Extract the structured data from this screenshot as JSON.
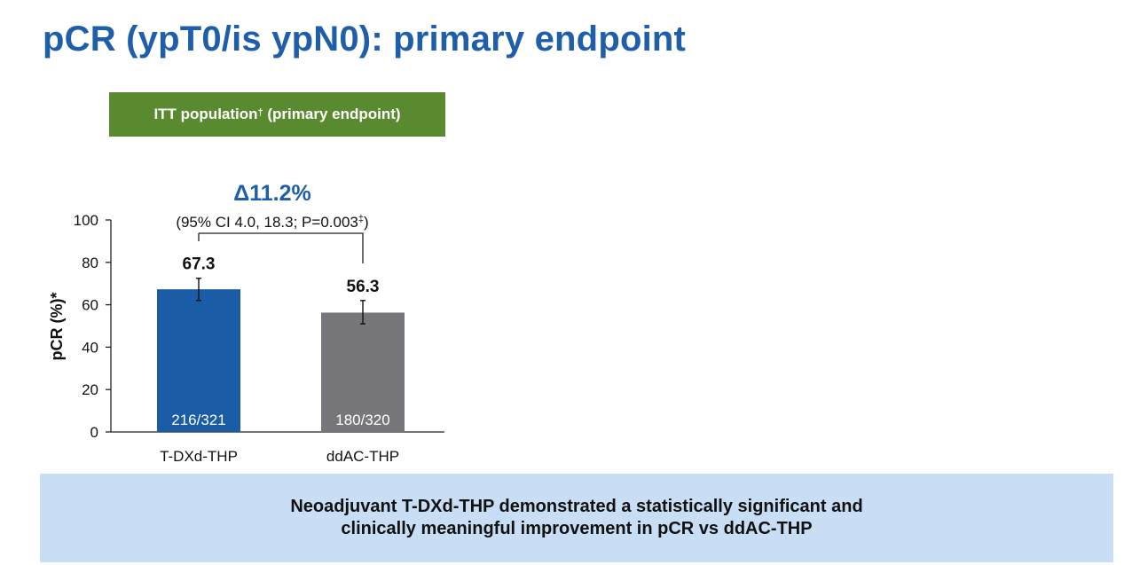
{
  "title": "pCR (ypT0/is ypN0): primary endpoint",
  "population": {
    "label": "ITT population",
    "mark": "†",
    "suffix": " (primary endpoint)",
    "color": "#5a8a2f"
  },
  "delta": {
    "label": "Δ11.2%",
    "ci_text_main": "(95% CI 4.0, 18.3; P=0.003",
    "ci_mark": "‡",
    "ci_text_end": ")"
  },
  "conclusion": {
    "line1": "Neoadjuvant T-DXd-THP demonstrated a statistically significant and",
    "line2": "clinically meaningful improvement in pCR vs ddAC-THP"
  },
  "chart_data": {
    "type": "bar",
    "ylabel": "pCR (%)*",
    "ylim": [
      0,
      100
    ],
    "yticks": [
      "0",
      "20",
      "40",
      "60",
      "80",
      "100"
    ],
    "categories": [
      "T-DXd-THP",
      "ddAC-THP"
    ],
    "values": [
      67.3,
      56.3
    ],
    "value_labels": [
      "67.3",
      "56.3"
    ],
    "counts": [
      "216/321",
      "180/320"
    ],
    "error_low": [
      62.0,
      51.0
    ],
    "error_high": [
      72.5,
      62.0
    ],
    "colors": [
      "#1a5ca6",
      "#77767b"
    ],
    "grid": false
  }
}
